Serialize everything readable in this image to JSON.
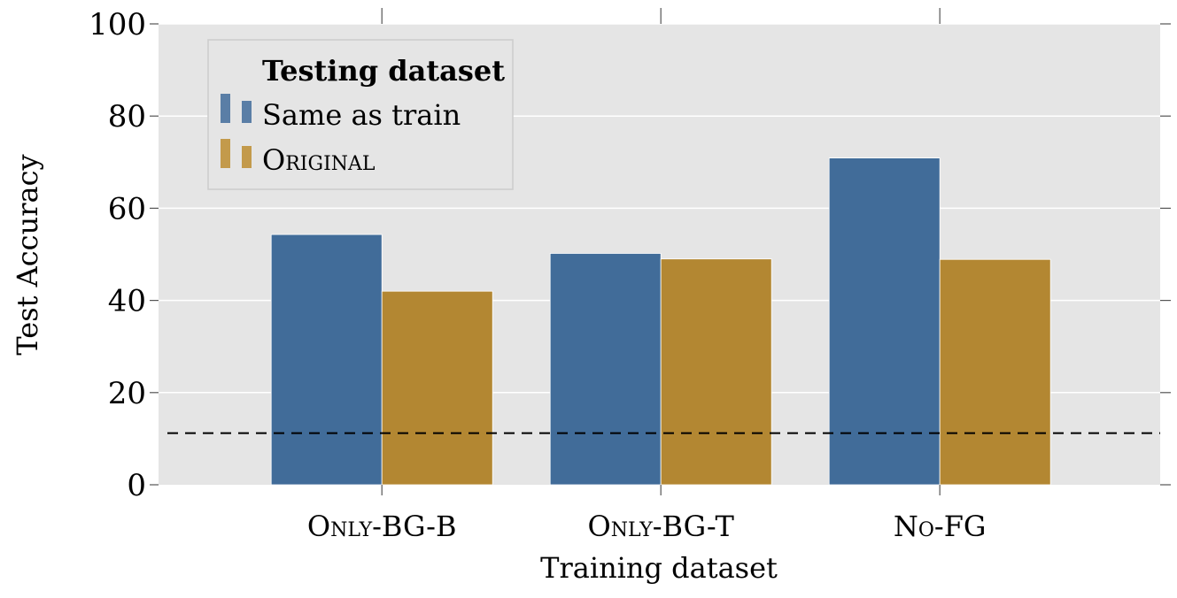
{
  "chart_data": {
    "type": "bar",
    "title": "",
    "xlabel": "Training dataset",
    "ylabel": "Test Accuracy",
    "categories": [
      "Only-BG-B",
      "Only-BG-T",
      "No-FG"
    ],
    "series": [
      {
        "name": "Same as train",
        "values": [
          54.3,
          50.2,
          70.9
        ],
        "color": "#416c99"
      },
      {
        "name": "Original",
        "values": [
          42.0,
          49.0,
          48.9
        ],
        "color": "#b38732"
      }
    ],
    "ylim": [
      0,
      100
    ],
    "yticks": [
      0,
      20,
      40,
      60,
      80,
      100
    ],
    "reference_line": {
      "value": 11.2,
      "style": "dashed",
      "color": "#000000"
    },
    "grid": true,
    "background_color": "#e5e5e5",
    "legend": {
      "title": "Testing dataset",
      "position": "top-left"
    }
  }
}
